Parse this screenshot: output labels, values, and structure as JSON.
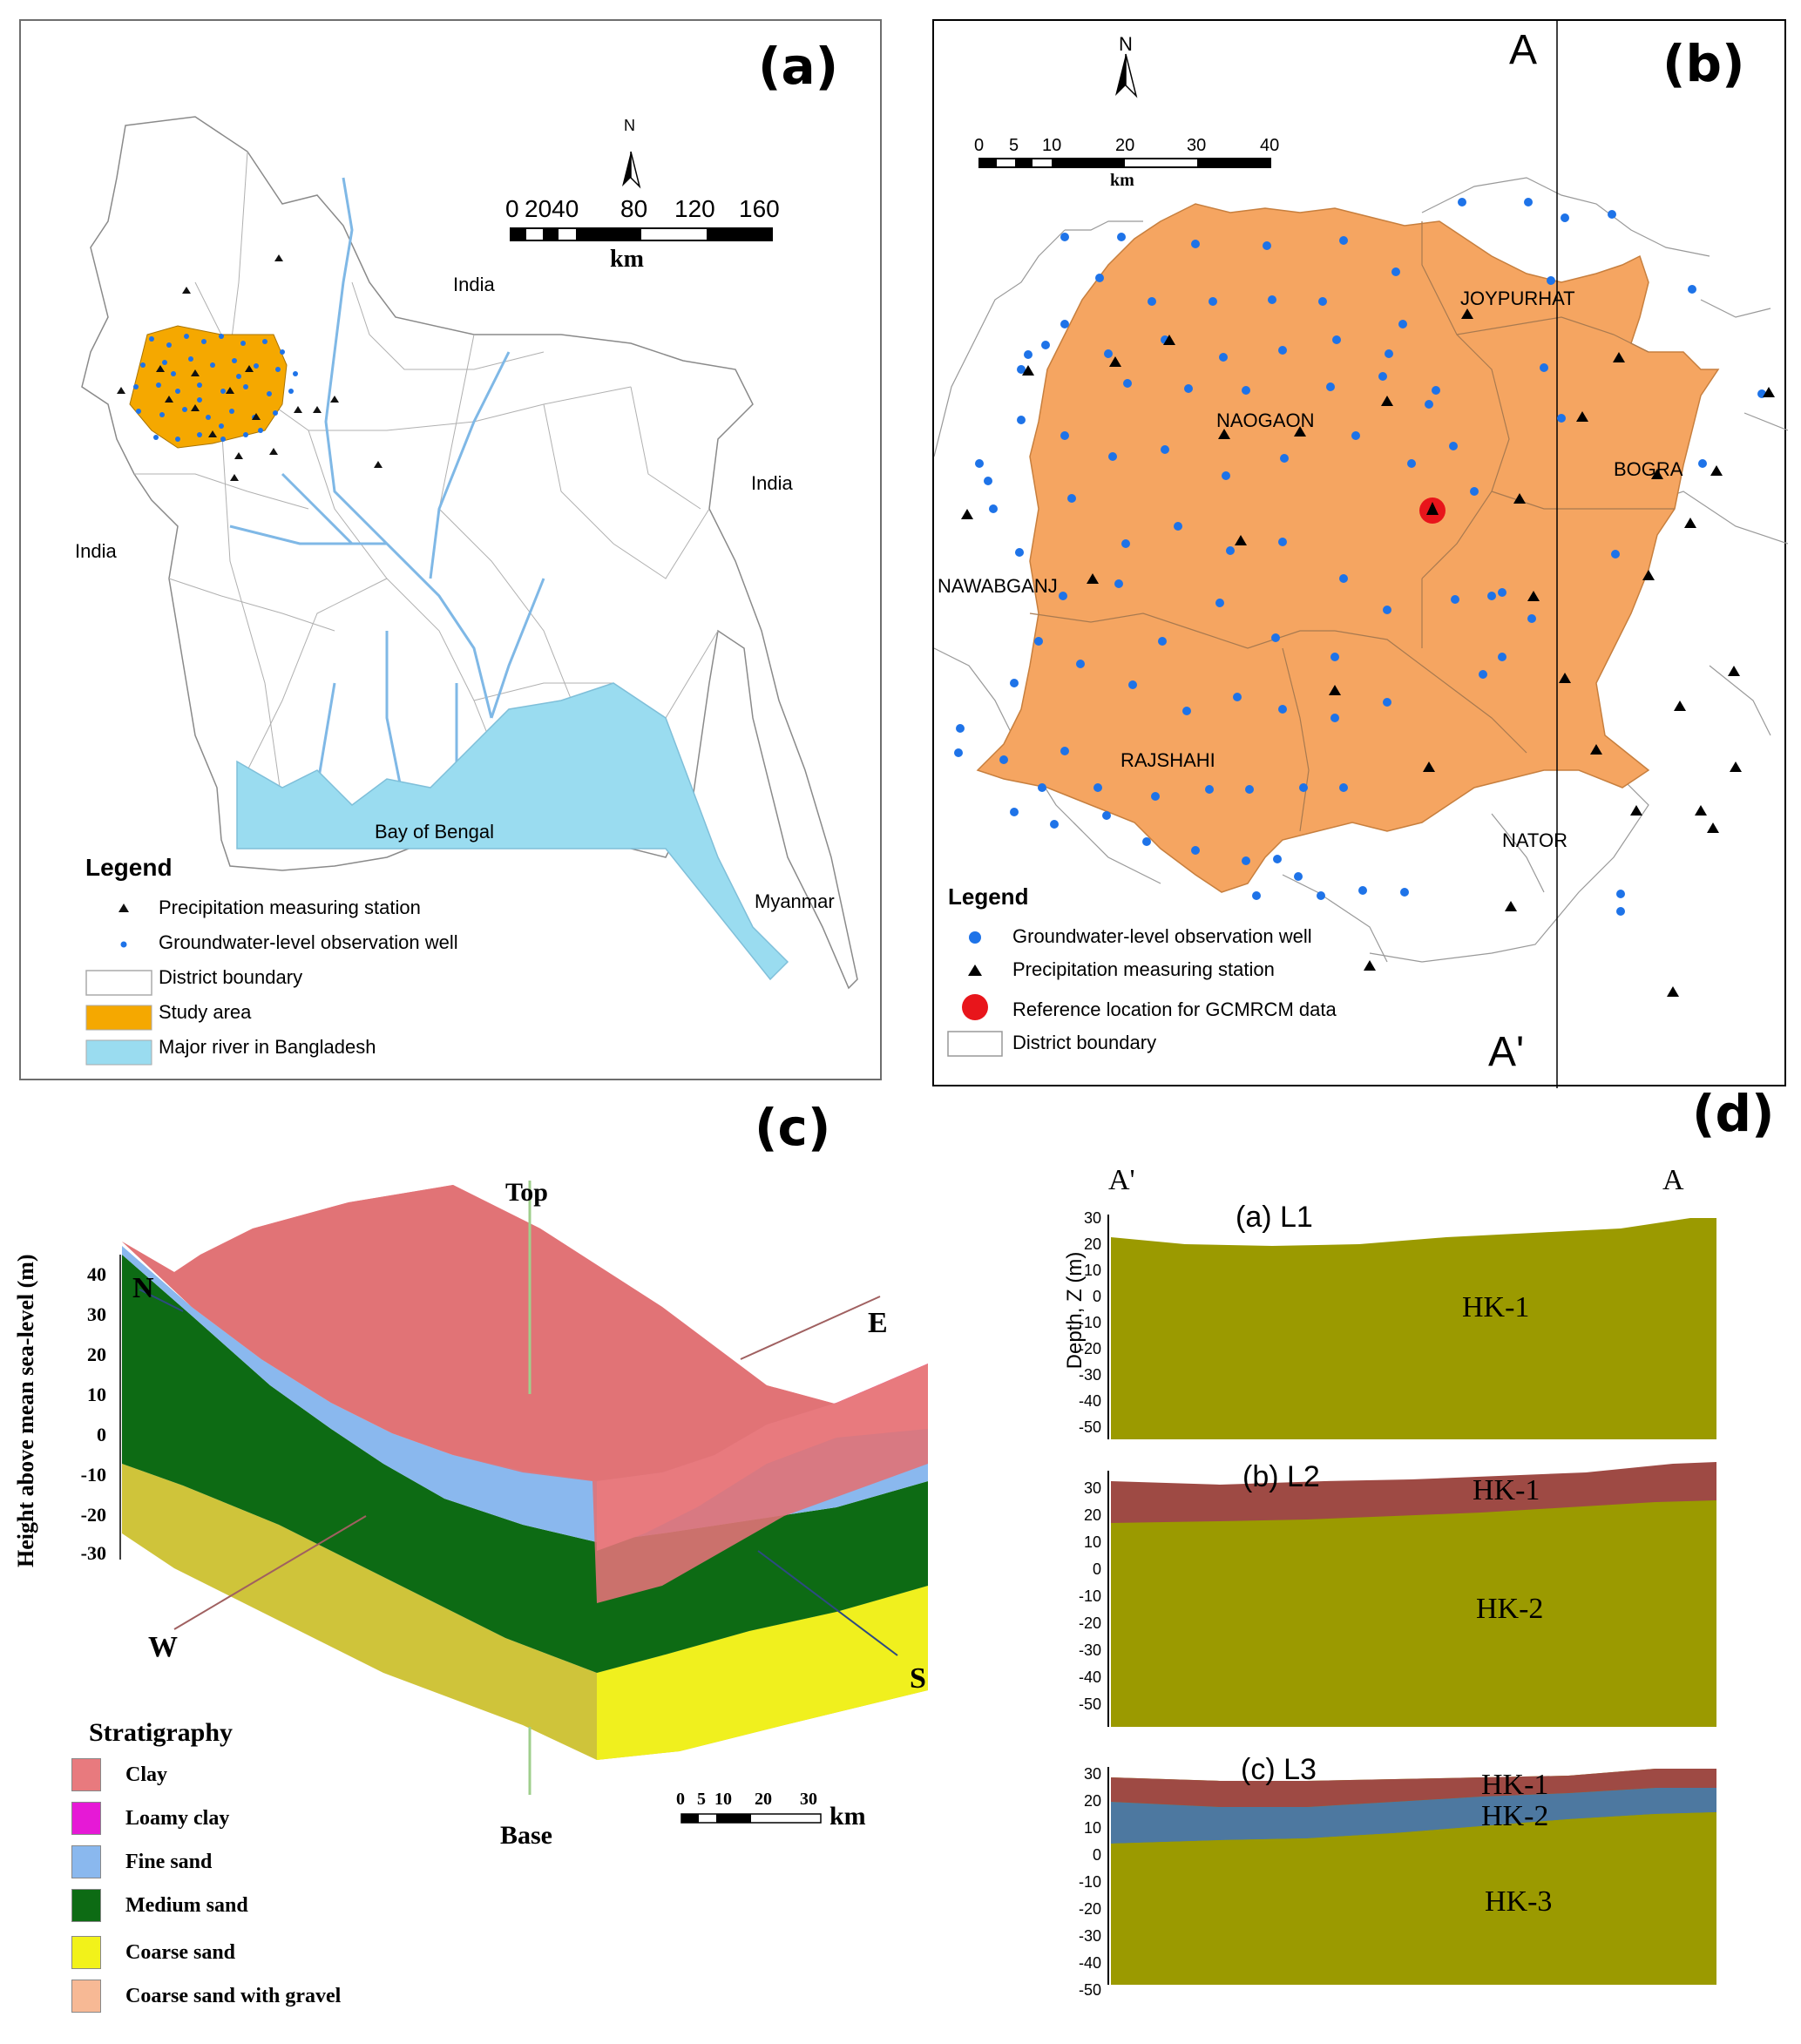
{
  "panel_a": {
    "label": "(a)",
    "north": "N",
    "scale": {
      "ticks": [
        "0",
        "2040",
        "80",
        "120",
        "160"
      ],
      "unit": "km"
    },
    "places": [
      "India",
      "India",
      "India",
      "Myanmar",
      "Bay of Bengal"
    ],
    "legend": {
      "title": "Legend",
      "items": [
        "Precipitation measuring station",
        "Groundwater-level observation well",
        "District boundary",
        "Study area",
        "Major river in Bangladesh"
      ]
    },
    "colors": {
      "study_area": "#f5a800",
      "river": "#9adcf0",
      "well": "#1e73e8"
    }
  },
  "panel_b": {
    "label": "(b)",
    "north": "N",
    "section_top": "A",
    "section_bottom": "A'",
    "scale": {
      "ticks": [
        "0",
        "5",
        "10",
        "20",
        "30",
        "40"
      ],
      "unit": "km"
    },
    "districts": [
      "JOYPURHAT",
      "NAOGAON",
      "BOGRA",
      "NAWABGANJ",
      "RAJSHAHI",
      "NATOR"
    ],
    "legend": {
      "title": "Legend",
      "items": [
        "Groundwater-level observation well",
        "Precipitation measuring station",
        "Reference location for GCMRCM data",
        "District boundary"
      ]
    },
    "colors": {
      "area": "#f5a561",
      "well": "#1e73e8",
      "reference": "#e8151b"
    }
  },
  "panel_c": {
    "label": "(c)",
    "axis_label": "Height above mean sea-level (m)",
    "y_ticks": [
      "40",
      "30",
      "20",
      "10",
      "0",
      "-10",
      "-20",
      "-30"
    ],
    "directions": {
      "north": "N",
      "east": "E",
      "west": "W",
      "south": "S",
      "top": "Top",
      "base": "Base"
    },
    "scale": {
      "ticks": [
        "0",
        "5",
        "10",
        "20",
        "30"
      ],
      "unit": "km"
    },
    "legend": {
      "title": "Stratigraphy",
      "items": [
        {
          "name": "Clay",
          "color": "#e87a7e"
        },
        {
          "name": "Loamy clay",
          "color": "#e619d6"
        },
        {
          "name": "Fine sand",
          "color": "#8ab8ee"
        },
        {
          "name": "Medium sand",
          "color": "#0d6b14"
        },
        {
          "name": "Coarse sand",
          "color": "#f2f21a"
        },
        {
          "name": "Coarse sand with gravel",
          "color": "#f7b995"
        }
      ]
    }
  },
  "panel_d": {
    "label": "(d)",
    "left_end": "A'",
    "right_end": "A",
    "ylabel": "Depth, Z (m)",
    "y_ticks": [
      "30",
      "20",
      "10",
      "0",
      "-10",
      "-20",
      "-30",
      "-40",
      "-50"
    ],
    "sections": [
      {
        "title": "(a) L1",
        "units": [
          "HK-1"
        ]
      },
      {
        "title": "(b) L2",
        "units": [
          "HK-1",
          "HK-2"
        ]
      },
      {
        "title": "(c) L3",
        "units": [
          "HK-1",
          "HK-2",
          "HK-3"
        ]
      }
    ],
    "colors": {
      "olive": "#9b9a00",
      "brown": "#9e4a44",
      "blue": "#4d78a0"
    }
  }
}
